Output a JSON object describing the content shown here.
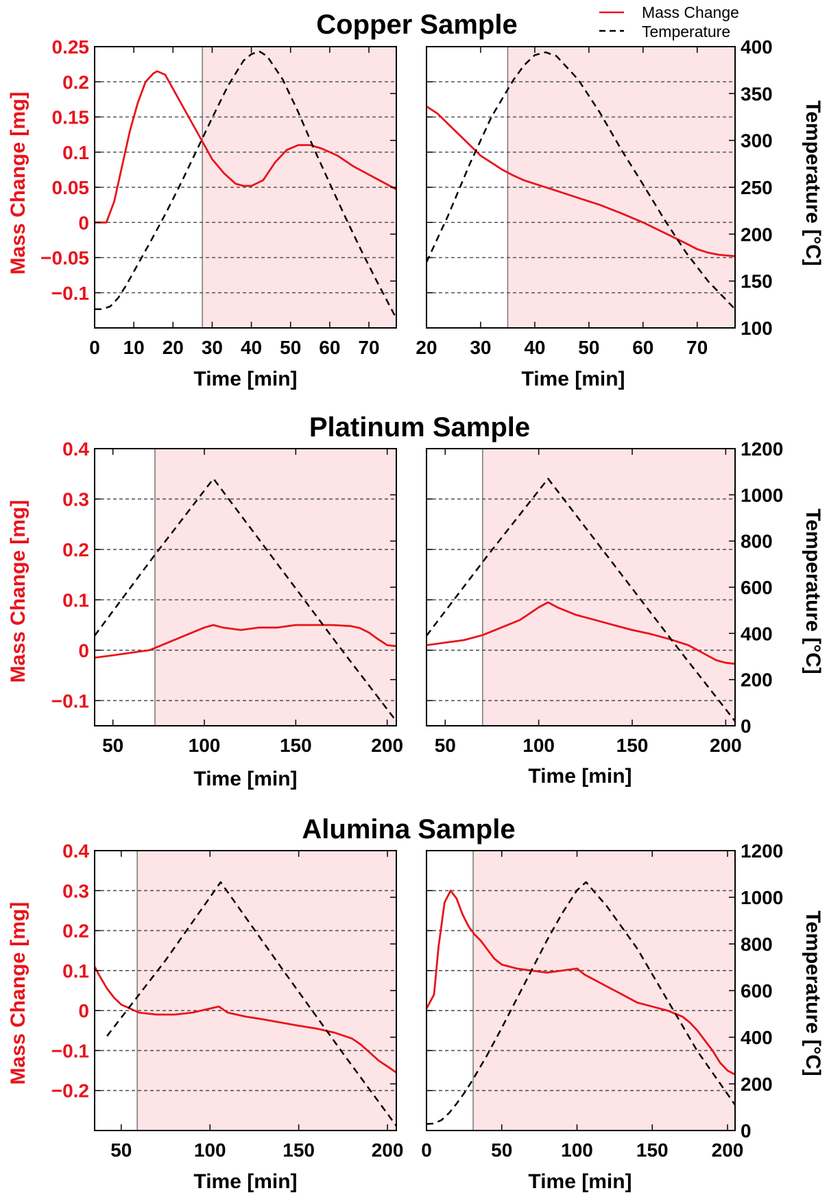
{
  "legend": {
    "mass_label": "Mass Change",
    "temp_label": "Temperature"
  },
  "colors": {
    "mass": "#e8141c",
    "temperature": "#000000",
    "shade": "#fde4e6",
    "grid": "#555555"
  },
  "chart_data": [
    {
      "group": "Copper Sample",
      "type": "line",
      "xlabel": "Time [min]",
      "ylabel": "Mass Change [mg]",
      "y2label": "Temperature [°C]",
      "xlim": [
        0,
        77
      ],
      "xticks": [
        0,
        10,
        20,
        30,
        40,
        50,
        60,
        70
      ],
      "ylim": [
        -0.15,
        0.25
      ],
      "yticks": [
        0.25,
        0.2,
        0.15,
        0.1,
        0.05,
        0,
        -0.05,
        -0.1
      ],
      "ytick_labels": [
        "0.25",
        "0.2",
        "0.15",
        "0.1",
        "0.05",
        "0",
        "−0.05",
        "−0.1"
      ],
      "y2lim": [
        100,
        400
      ],
      "y2ticks": [
        400,
        350,
        300,
        250,
        200,
        150,
        100
      ],
      "grid": "horizontal dashed",
      "shaded_from_x": 27.5,
      "series": [
        {
          "name": "Mass Change",
          "x": [
            0,
            3,
            5,
            7,
            9,
            11,
            13,
            15,
            16,
            18,
            20,
            22,
            24,
            26,
            28,
            30,
            33,
            36,
            38,
            40,
            43,
            46,
            49,
            52,
            55,
            58,
            62,
            66,
            70,
            74,
            77
          ],
          "y": [
            0.0,
            0.0,
            0.03,
            0.08,
            0.13,
            0.17,
            0.2,
            0.212,
            0.215,
            0.21,
            0.19,
            0.17,
            0.15,
            0.13,
            0.11,
            0.09,
            0.07,
            0.055,
            0.052,
            0.052,
            0.06,
            0.085,
            0.103,
            0.11,
            0.11,
            0.105,
            0.095,
            0.08,
            0.068,
            0.056,
            0.047
          ]
        },
        {
          "name": "Temperature",
          "axis": "right",
          "x": [
            0,
            2,
            4,
            6,
            8,
            10,
            14,
            18,
            22,
            26,
            30,
            34,
            38,
            40,
            42,
            44,
            48,
            52,
            56,
            60,
            64,
            68,
            72,
            77
          ],
          "y": [
            120,
            120,
            123,
            132,
            145,
            160,
            190,
            221,
            254,
            289,
            324,
            358,
            385,
            392,
            395,
            390,
            365,
            330,
            291,
            254,
            218,
            183,
            150,
            110
          ]
        }
      ]
    },
    {
      "group": "Copper Sample",
      "type": "line",
      "xlabel": "Time [min]",
      "xlim": [
        20,
        77
      ],
      "xticks": [
        20,
        30,
        40,
        50,
        60,
        70
      ],
      "ylim": [
        -0.15,
        0.25
      ],
      "y2lim": [
        100,
        400
      ],
      "grid": "horizontal dashed",
      "shaded_from_x": 35,
      "series": [
        {
          "name": "Mass Change",
          "x": [
            20,
            22,
            24,
            26,
            28,
            30,
            32,
            34,
            36,
            38,
            40,
            44,
            48,
            52,
            56,
            60,
            64,
            68,
            70,
            72,
            74,
            77
          ],
          "y": [
            0.165,
            0.155,
            0.14,
            0.125,
            0.11,
            0.095,
            0.085,
            0.075,
            0.067,
            0.06,
            0.055,
            0.045,
            0.035,
            0.025,
            0.013,
            0.0,
            -0.015,
            -0.03,
            -0.038,
            -0.043,
            -0.046,
            -0.048
          ]
        },
        {
          "name": "Temperature",
          "axis": "right",
          "x": [
            20,
            24,
            28,
            32,
            36,
            38,
            40,
            42,
            44,
            48,
            52,
            56,
            60,
            64,
            68,
            72,
            77
          ],
          "y": [
            170,
            220,
            275,
            325,
            364,
            380,
            391,
            394,
            390,
            365,
            330,
            290,
            253,
            215,
            180,
            150,
            120
          ]
        }
      ]
    },
    {
      "group": "Platinum Sample",
      "type": "line",
      "xlabel": "Time [min]",
      "ylabel": "Mass Change [mg]",
      "y2label": "Temperature [°C]",
      "xlim": [
        40,
        205
      ],
      "xticks": [
        50,
        100,
        150,
        200
      ],
      "ylim": [
        -0.15,
        0.4
      ],
      "yticks": [
        0.4,
        0.3,
        0.2,
        0.1,
        0,
        -0.1
      ],
      "ytick_labels": [
        "0.4",
        "0.3",
        "0.2",
        "0.1",
        "0",
        "−0.1"
      ],
      "y2lim": [
        0,
        1200
      ],
      "y2ticks": [
        1200,
        1000,
        800,
        600,
        400,
        200,
        0
      ],
      "grid": "horizontal dashed",
      "shaded_from_x": 73,
      "series": [
        {
          "name": "Mass Change",
          "x": [
            40,
            50,
            60,
            70,
            80,
            90,
            100,
            105,
            110,
            120,
            130,
            140,
            150,
            160,
            170,
            180,
            185,
            190,
            195,
            200,
            205
          ],
          "y": [
            -0.015,
            -0.01,
            -0.005,
            0.0,
            0.015,
            0.03,
            0.045,
            0.05,
            0.045,
            0.04,
            0.045,
            0.045,
            0.05,
            0.05,
            0.05,
            0.048,
            0.044,
            0.035,
            0.022,
            0.01,
            0.008
          ]
        },
        {
          "name": "Temperature",
          "axis": "right",
          "x": [
            40,
            72,
            105,
            140,
            175,
            205
          ],
          "y": [
            390,
            730,
            1070,
            700,
            330,
            20
          ]
        }
      ]
    },
    {
      "group": "Platinum Sample",
      "type": "line",
      "xlabel": "Time [min]",
      "xlim": [
        40,
        205
      ],
      "xticks": [
        50,
        100,
        150,
        200
      ],
      "ylim": [
        -0.15,
        0.4
      ],
      "y2lim": [
        0,
        1200
      ],
      "grid": "horizontal dashed",
      "shaded_from_x": 70,
      "series": [
        {
          "name": "Mass Change",
          "x": [
            40,
            50,
            60,
            70,
            80,
            90,
            100,
            105,
            110,
            120,
            130,
            140,
            150,
            160,
            170,
            180,
            185,
            190,
            195,
            200,
            205
          ],
          "y": [
            0.01,
            0.015,
            0.02,
            0.03,
            0.045,
            0.06,
            0.085,
            0.095,
            0.085,
            0.07,
            0.06,
            0.05,
            0.04,
            0.032,
            0.022,
            0.01,
            0.0,
            -0.01,
            -0.02,
            -0.025,
            -0.027
          ]
        },
        {
          "name": "Temperature",
          "axis": "right",
          "x": [
            40,
            72,
            105,
            140,
            175,
            205
          ],
          "y": [
            390,
            730,
            1070,
            700,
            330,
            20
          ]
        }
      ]
    },
    {
      "group": "Alumina Sample",
      "type": "line",
      "xlabel": "Time [min]",
      "ylabel": "Mass Change [mg]",
      "y2label": "Temperature [°C]",
      "xlim": [
        35,
        205
      ],
      "xticks": [
        50,
        100,
        150,
        200
      ],
      "ylim": [
        -0.3,
        0.4
      ],
      "yticks": [
        0.4,
        0.3,
        0.2,
        0.1,
        0,
        -0.1,
        -0.2
      ],
      "ytick_labels": [
        "0.4",
        "0.3",
        "0.2",
        "0.1",
        "0",
        "−0.1",
        "−0.2"
      ],
      "y2lim": [
        0,
        1200
      ],
      "y2ticks": [
        1200,
        1000,
        800,
        600,
        400,
        200,
        0
      ],
      "grid": "horizontal dashed",
      "shaded_from_x": 59,
      "series": [
        {
          "name": "Mass Change",
          "x": [
            35,
            38,
            42,
            46,
            50,
            55,
            60,
            70,
            80,
            90,
            100,
            105,
            110,
            120,
            130,
            140,
            150,
            160,
            170,
            180,
            185,
            190,
            195,
            200,
            205
          ],
          "y": [
            0.11,
            0.085,
            0.055,
            0.032,
            0.015,
            0.005,
            -0.005,
            -0.01,
            -0.01,
            -0.005,
            0.005,
            0.01,
            -0.005,
            -0.015,
            -0.022,
            -0.03,
            -0.038,
            -0.045,
            -0.055,
            -0.07,
            -0.085,
            -0.105,
            -0.125,
            -0.14,
            -0.155
          ]
        },
        {
          "name": "Temperature",
          "axis": "right",
          "x": [
            42,
            75,
            106,
            140,
            175,
            205
          ],
          "y": [
            405,
            730,
            1065,
            700,
            330,
            20
          ]
        }
      ]
    },
    {
      "group": "Alumina Sample",
      "type": "line",
      "xlabel": "Time [min]",
      "xlim": [
        0,
        205
      ],
      "xticks": [
        0,
        50,
        100,
        150,
        200
      ],
      "ylim": [
        -0.3,
        0.4
      ],
      "y2lim": [
        0,
        1200
      ],
      "grid": "horizontal dashed",
      "shaded_from_x": 31,
      "series": [
        {
          "name": "Mass Change",
          "x": [
            0,
            5,
            8,
            12,
            16,
            20,
            24,
            28,
            32,
            36,
            40,
            45,
            50,
            60,
            70,
            80,
            90,
            100,
            105,
            110,
            120,
            130,
            140,
            150,
            160,
            170,
            175,
            180,
            185,
            190,
            195,
            200,
            205
          ],
          "y": [
            0.005,
            0.04,
            0.16,
            0.27,
            0.3,
            0.28,
            0.24,
            0.21,
            0.19,
            0.175,
            0.155,
            0.13,
            0.115,
            0.105,
            0.1,
            0.095,
            0.1,
            0.105,
            0.09,
            0.08,
            0.06,
            0.04,
            0.02,
            0.01,
            0.0,
            -0.015,
            -0.03,
            -0.05,
            -0.075,
            -0.1,
            -0.13,
            -0.15,
            -0.16
          ]
        },
        {
          "name": "Temperature",
          "axis": "right",
          "x": [
            0,
            5,
            10,
            15,
            20,
            25,
            30,
            40,
            50,
            60,
            70,
            80,
            90,
            100,
            106,
            120,
            140,
            160,
            180,
            205
          ],
          "y": [
            28,
            30,
            45,
            75,
            115,
            160,
            210,
            320,
            440,
            565,
            690,
            815,
            930,
            1030,
            1065,
            960,
            780,
            560,
            340,
            110
          ]
        }
      ]
    }
  ],
  "groups": [
    "Copper Sample",
    "Platinum Sample",
    "Alumina Sample"
  ]
}
